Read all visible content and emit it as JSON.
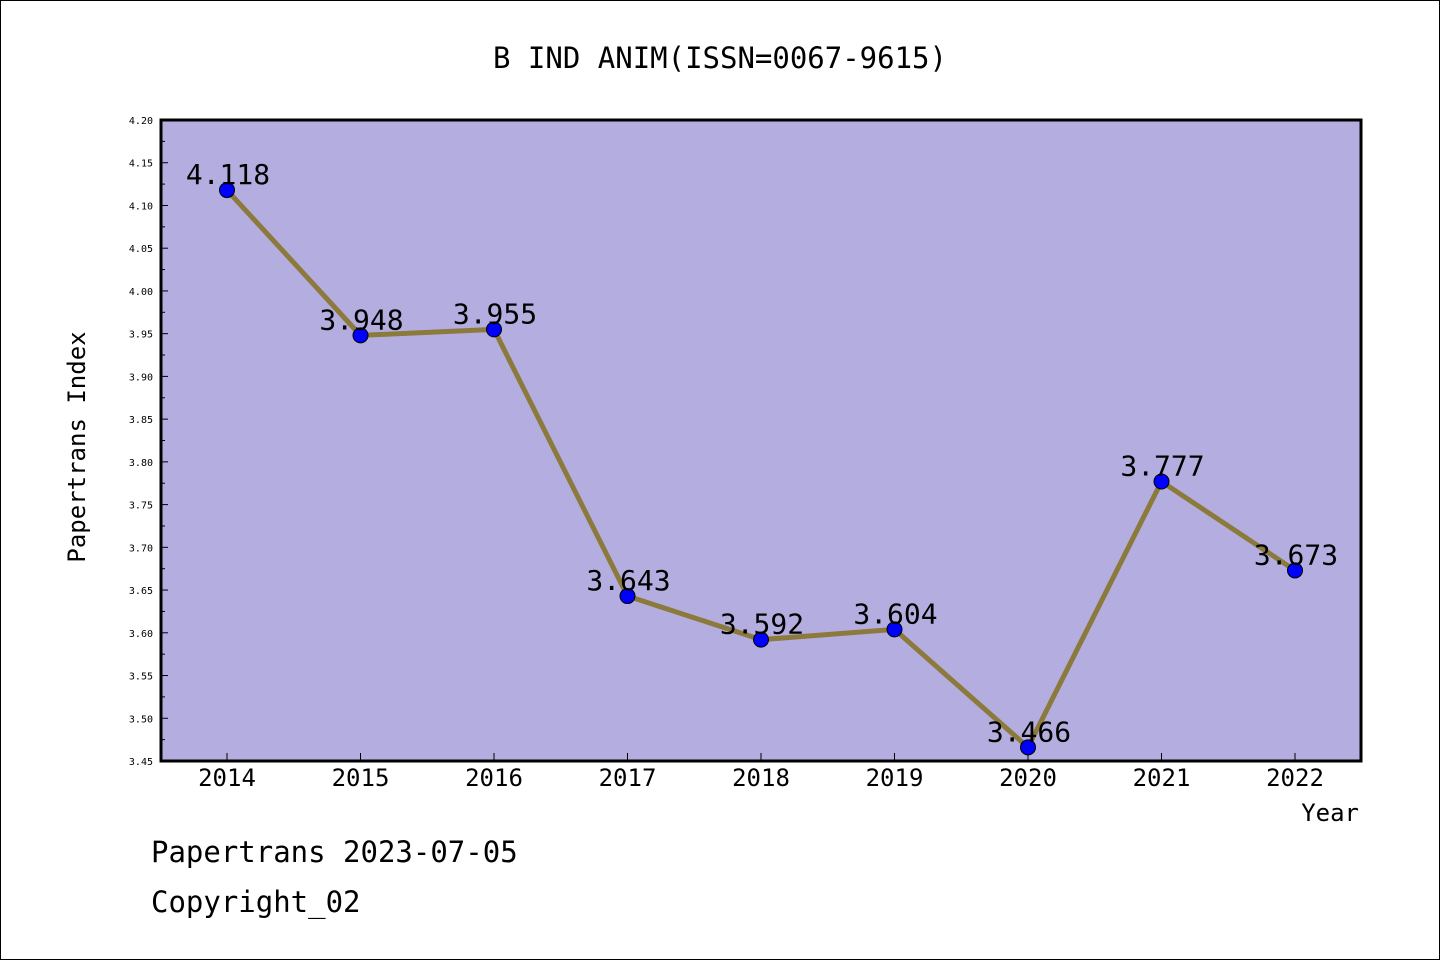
{
  "chart_data": {
    "type": "line",
    "title": "B IND ANIM(ISSN=0067-9615)",
    "xlabel": "Year",
    "ylabel": "Papertrans Index",
    "categories": [
      "2014",
      "2015",
      "2016",
      "2017",
      "2018",
      "2019",
      "2020",
      "2021",
      "2022"
    ],
    "values": [
      4.118,
      3.948,
      3.955,
      3.643,
      3.592,
      3.604,
      3.466,
      3.777,
      3.673
    ],
    "data_labels": [
      "4.118",
      "3.948",
      "3.955",
      "3.643",
      "3.592",
      "3.604",
      "3.466",
      "3.777",
      "3.673"
    ],
    "ylim": [
      3.45,
      4.2
    ],
    "yticks": [
      "3.45",
      "3.50",
      "3.55",
      "3.60",
      "3.65",
      "3.70",
      "3.75",
      "3.80",
      "3.85",
      "3.90",
      "3.95",
      "4.00",
      "4.05",
      "4.10",
      "4.15",
      "4.20"
    ],
    "grid": false,
    "colors": {
      "plot_background": "#b4aee0",
      "line": "#8c7a3c",
      "marker": "#0000ff"
    }
  },
  "footer": {
    "line1": "Papertrans 2023-07-05",
    "line2": "Copyright_02"
  }
}
